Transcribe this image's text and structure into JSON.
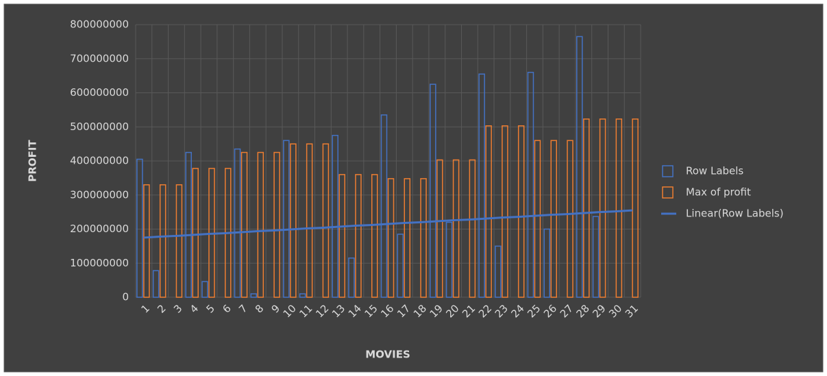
{
  "chart_data": {
    "type": "bar",
    "x_label": "MOVIES",
    "y_label": "PROFIT",
    "categories": [
      "1",
      "2",
      "3",
      "4",
      "5",
      "6",
      "7",
      "8",
      "9",
      "10",
      "11",
      "12",
      "13",
      "14",
      "15",
      "16",
      "17",
      "18",
      "19",
      "20",
      "21",
      "22",
      "23",
      "24",
      "25",
      "26",
      "27",
      "28",
      "29",
      "30",
      "31"
    ],
    "series": [
      {
        "name": "Row Labels",
        "color": "#4472c4",
        "values": [
          405000000,
          78000000,
          0,
          425000000,
          46000000,
          0,
          435000000,
          10000000,
          0,
          460000000,
          10000000,
          0,
          475000000,
          115000000,
          0,
          535000000,
          185000000,
          0,
          625000000,
          220000000,
          0,
          655000000,
          150000000,
          0,
          660000000,
          200000000,
          0,
          765000000,
          237000000,
          0,
          0
        ]
      },
      {
        "name": "Max of profit",
        "color": "#ed7d31",
        "values": [
          330000000,
          330000000,
          330000000,
          378000000,
          378000000,
          378000000,
          425000000,
          425000000,
          425000000,
          450000000,
          450000000,
          450000000,
          360000000,
          360000000,
          360000000,
          348000000,
          348000000,
          348000000,
          403000000,
          403000000,
          403000000,
          503000000,
          503000000,
          503000000,
          460000000,
          460000000,
          460000000,
          523000000,
          523000000,
          523000000,
          523000000
        ]
      },
      {
        "name": "Linear(Row Labels)",
        "color": "#4472c4",
        "type": "line",
        "values": [
          175000000,
          178000000,
          180000000,
          183000000,
          186000000,
          188000000,
          191000000,
          194000000,
          196000000,
          199000000,
          202000000,
          204000000,
          207000000,
          210000000,
          212000000,
          215000000,
          218000000,
          220000000,
          223000000,
          226000000,
          228000000,
          231000000,
          234000000,
          236000000,
          239000000,
          242000000,
          244000000,
          247000000,
          250000000,
          252000000,
          255000000
        ]
      }
    ],
    "ylim": [
      0,
      800000000
    ],
    "yticks": [
      0,
      100000000,
      200000000,
      300000000,
      400000000,
      500000000,
      600000000,
      700000000,
      800000000
    ],
    "grid": true,
    "legend": "right"
  }
}
